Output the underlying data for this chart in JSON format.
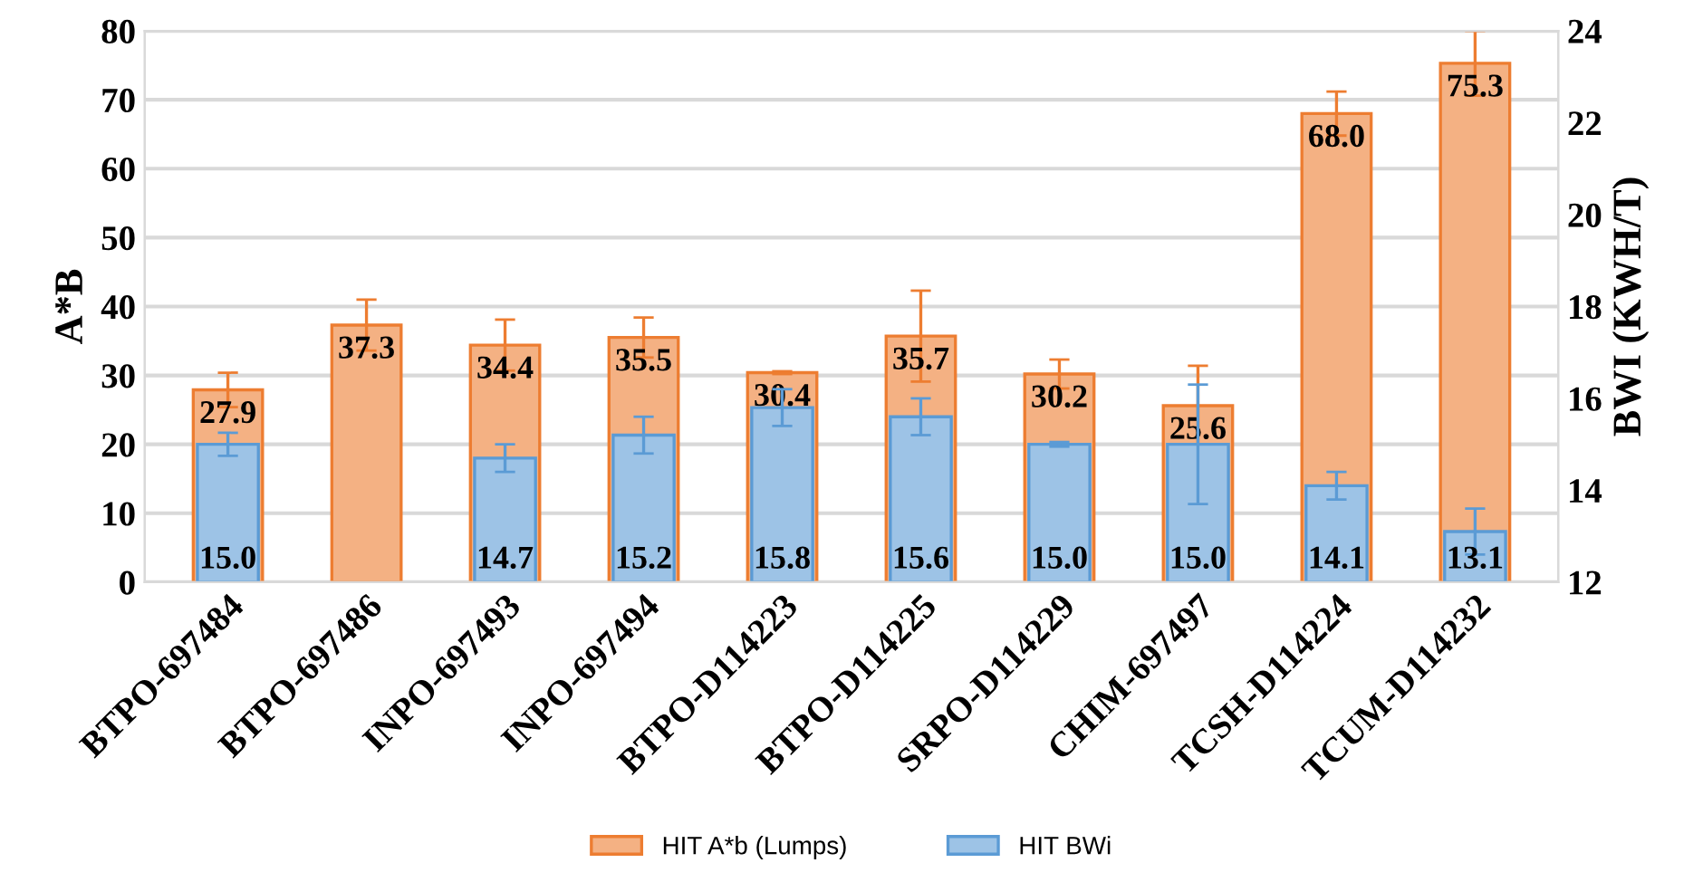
{
  "chart_data": {
    "type": "bar",
    "categories": [
      "BTPO-697484",
      "BTPO-697486",
      "INPO-697493",
      "INPO-697494",
      "BTPO-D114223",
      "BTPO-D114225",
      "SRPO-D114229",
      "CHIM-697497",
      "TCSH-D114224",
      "TCUM-D114232"
    ],
    "series": [
      {
        "name": "HIT A*b (Lumps)",
        "color": "#f4b183",
        "values": [
          27.9,
          37.3,
          34.4,
          35.5,
          30.4,
          35.7,
          30.2,
          25.6,
          68.0,
          75.3
        ],
        "value_labels": [
          "27.9",
          "37.3",
          "34.4",
          "35.5",
          "30.4",
          "35.7",
          "30.2",
          "25.6",
          "68.0",
          "75.3"
        ],
        "errors": [
          2.5,
          3.7,
          3.7,
          2.9,
          0.2,
          6.6,
          2.1,
          5.8,
          3.2,
          4.7
        ]
      },
      {
        "name": "HIT BWi",
        "color": "#9dc3e6",
        "axis": "y2",
        "values": [
          15.0,
          null,
          14.7,
          15.2,
          15.8,
          15.6,
          15.0,
          15.0,
          14.1,
          13.1
        ],
        "value_labels": [
          "15.0",
          null,
          "14.7",
          "15.2",
          "15.8",
          "15.6",
          "15.0",
          "15.0",
          "14.1",
          "13.1"
        ],
        "errors": [
          0.25,
          null,
          0.3,
          0.4,
          0.4,
          0.4,
          0.05,
          1.3,
          0.3,
          0.5
        ]
      }
    ],
    "ylabel": "A*B",
    "y2label": "BWI (KWH/T)",
    "ylim": [
      0,
      80
    ],
    "yticks": [
      0,
      10,
      20,
      30,
      40,
      50,
      60,
      70,
      80
    ],
    "y2lim": [
      12,
      24
    ],
    "y2ticks": [
      12,
      14,
      16,
      18,
      20,
      22,
      24
    ],
    "grid": "y",
    "legend": "bottom"
  }
}
